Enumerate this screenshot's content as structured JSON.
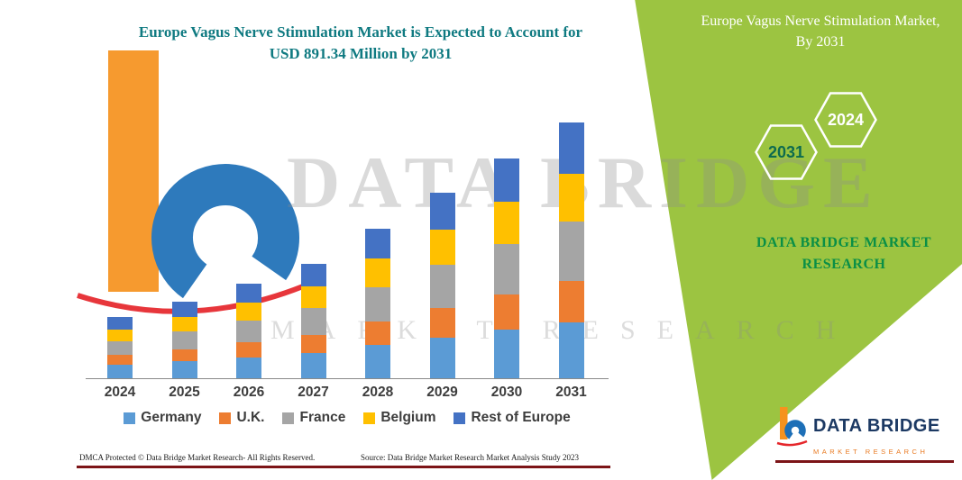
{
  "page": {
    "title_line1": "Europe Vagus Nerve Stimulation Market is Expected to Account for",
    "title_line2": "USD 891.34 Million by 2031"
  },
  "side_panel": {
    "title": "Europe Vagus Nerve Stimulation Market, By 2031",
    "hexagons": [
      {
        "label": "2031"
      },
      {
        "label": "2024"
      }
    ],
    "brand_text": "DATA BRIDGE MARKET RESEARCH",
    "panel_color": "#9cc441"
  },
  "watermark": {
    "line1": "DATA BRIDGE",
    "line2": "MARKET RESEARCH"
  },
  "logo": {
    "name": "DATA BRIDGE",
    "subtitle": "MARKET RESEARCH"
  },
  "footer": {
    "dmca": "DMCA Protected © Data Bridge Market Research- All Rights Reserved.",
    "source": "Source: Data Bridge Market Research Market Analysis Study 2023",
    "rule_color": "#7c1417"
  },
  "chart_data": {
    "type": "bar",
    "stacked": true,
    "title": "Europe Vagus Nerve Stimulation Market is Expected to Account for USD 891.34 Million by 2031",
    "unit": "USD Million",
    "categories": [
      "2024",
      "2025",
      "2026",
      "2027",
      "2028",
      "2029",
      "2030",
      "2031"
    ],
    "series": [
      {
        "name": "Germany",
        "color": "#5b9bd5",
        "values": [
          47,
          59,
          73,
          88,
          115,
          142,
          169,
          196
        ]
      },
      {
        "name": "U.K.",
        "color": "#ed7d31",
        "values": [
          34,
          43,
          53,
          64,
          83,
          103,
          123,
          144
        ]
      },
      {
        "name": "France",
        "color": "#a5a5a5",
        "values": [
          49,
          61,
          76,
          92,
          120,
          149,
          176,
          207
        ]
      },
      {
        "name": "Belgium",
        "color": "#ffc000",
        "values": [
          40,
          51,
          63,
          76,
          99,
          123,
          146,
          166
        ]
      },
      {
        "name": "Rest of Europe",
        "color": "#4472c4",
        "values": [
          43,
          53,
          65,
          79,
          104,
          129,
          152,
          178.34
        ]
      }
    ],
    "totals": [
      213,
      267,
      330,
      399,
      521,
      646,
      766,
      891.34
    ],
    "ylim": [
      0,
      900
    ],
    "grid": false,
    "legend_position": "bottom"
  }
}
